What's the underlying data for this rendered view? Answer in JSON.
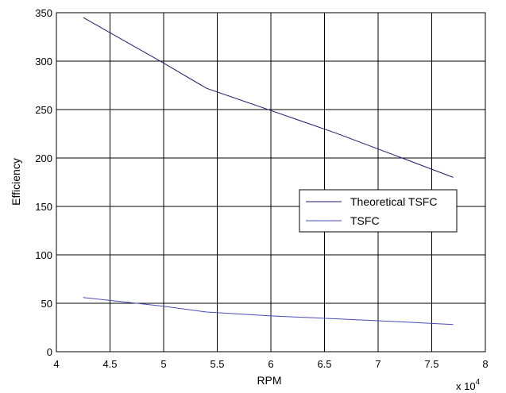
{
  "chart_data": {
    "type": "line",
    "xlabel": "RPM",
    "ylabel": "Efficiency",
    "x_multiplier_label": "x 10",
    "x_multiplier_exponent": "4",
    "xlim": [
      4,
      8
    ],
    "ylim": [
      0,
      350
    ],
    "xticks": [
      4,
      4.5,
      5,
      5.5,
      6,
      6.5,
      7,
      7.5,
      8
    ],
    "yticks": [
      0,
      50,
      100,
      150,
      200,
      250,
      300,
      350
    ],
    "xtick_labels": [
      "4",
      "4.5",
      "5",
      "5.5",
      "6",
      "6.5",
      "7",
      "7.5",
      "8"
    ],
    "ytick_labels": [
      "0",
      "50",
      "100",
      "150",
      "200",
      "250",
      "300",
      "350"
    ],
    "grid": true,
    "legend_position": "right",
    "series": [
      {
        "name": "Theoretical TSFC",
        "color": "#1a1a6e",
        "x": [
          4.25,
          5.0,
          5.4,
          6.0,
          6.6,
          7.2,
          7.7
        ],
        "y": [
          345,
          298,
          272,
          249,
          226,
          201,
          180
        ]
      },
      {
        "name": "TSFC",
        "color": "#4a4ab8",
        "x": [
          4.25,
          5.0,
          5.4,
          6.0,
          6.6,
          7.2,
          7.7
        ],
        "y": [
          56,
          47,
          41,
          37,
          34,
          31,
          28
        ]
      }
    ]
  }
}
